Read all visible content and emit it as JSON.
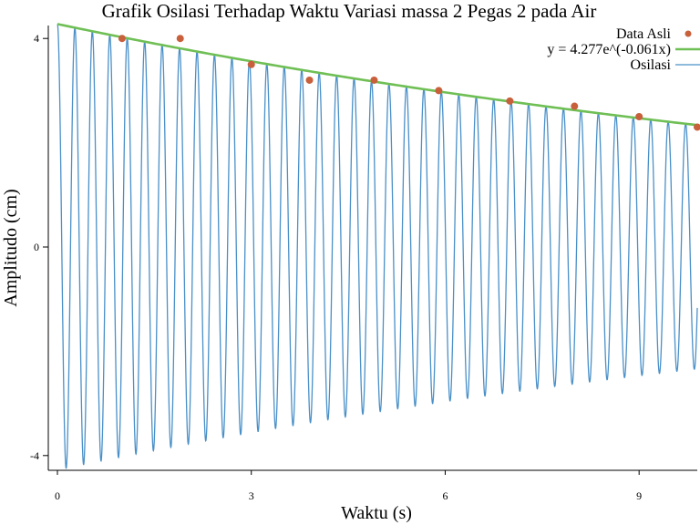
{
  "chart_data": {
    "type": "line",
    "title": "Grafik Osilasi Terhadap Waktu Variasi massa 2 Pegas 2 pada Air",
    "xlabel": "Waktu (s)",
    "ylabel": "Amplitudo (cm)",
    "xlim": [
      0,
      9.9
    ],
    "ylim": [
      -4.3,
      4.3
    ],
    "xticks": [
      0,
      3,
      6,
      9
    ],
    "yticks": [
      -4,
      0,
      4
    ],
    "grid": false,
    "legend_position": "top-right",
    "colors": {
      "data": "#c8603c",
      "fit": "#6fbf55",
      "oscillation": "#4a90c8"
    },
    "series": [
      {
        "name": "Data Asli",
        "kind": "scatter",
        "x": [
          1.0,
          1.9,
          3.0,
          3.9,
          4.9,
          5.9,
          7.0,
          8.0,
          9.0,
          9.9
        ],
        "y": [
          4.0,
          4.0,
          3.5,
          3.2,
          3.2,
          3.0,
          2.8,
          2.7,
          2.5,
          2.3
        ]
      },
      {
        "name": "y = 4.277e^(-0.061x)",
        "kind": "line",
        "amplitude": 4.277,
        "decay": -0.061
      },
      {
        "name": "Osilasi",
        "kind": "line",
        "amplitude": 4.277,
        "decay": -0.061,
        "period": 0.27
      }
    ]
  }
}
